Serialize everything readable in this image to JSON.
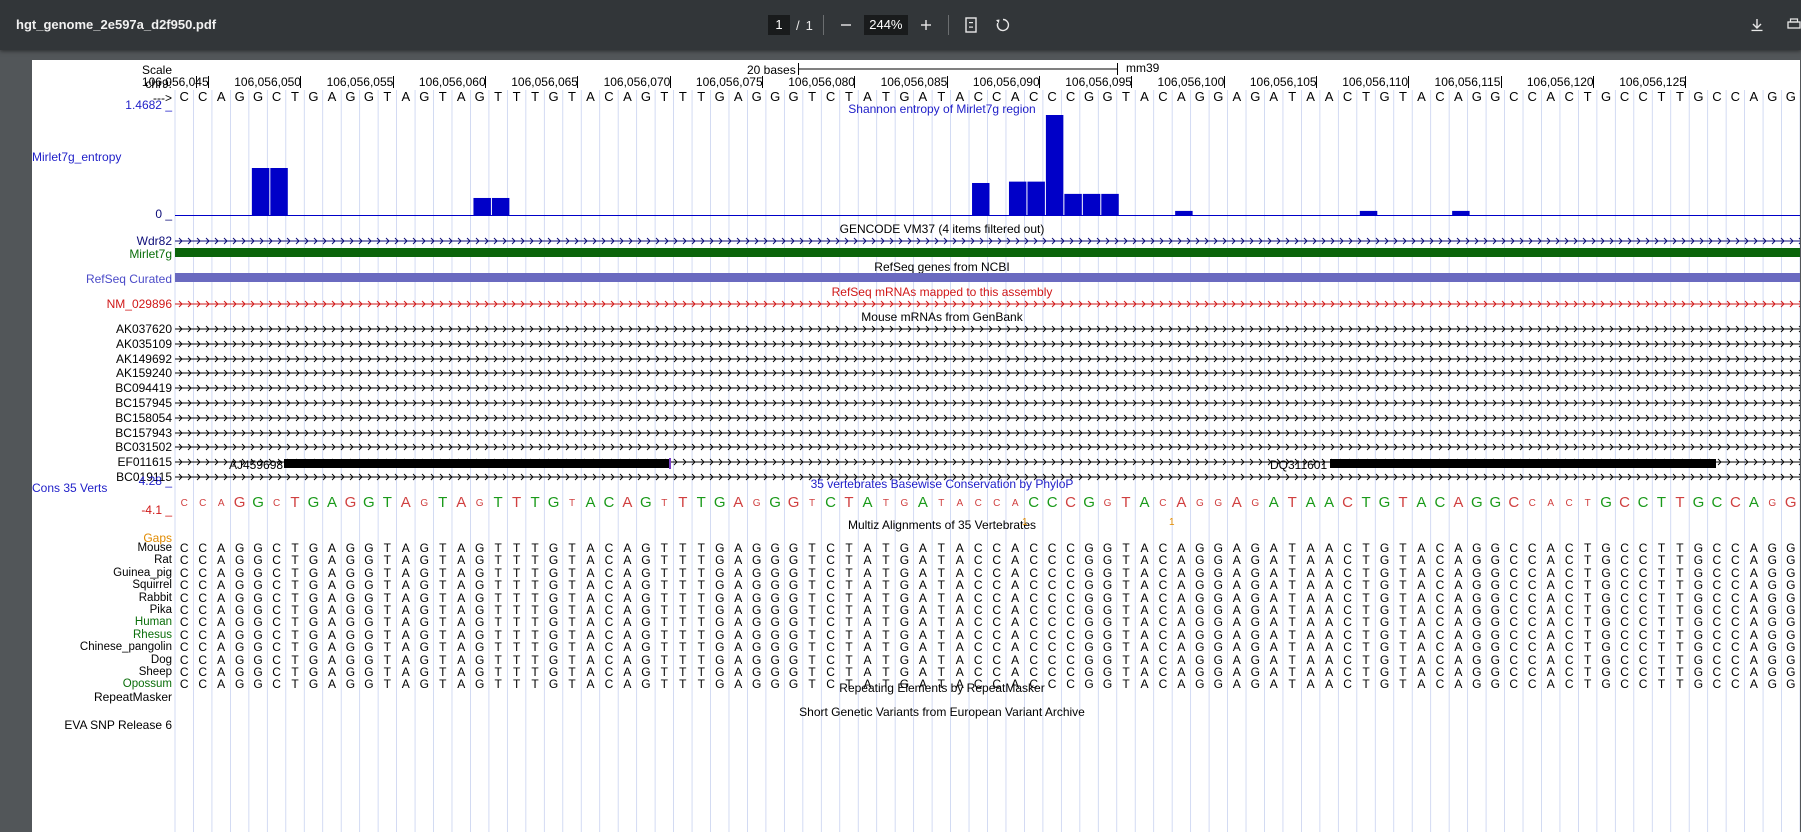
{
  "toolbar": {
    "title": "hgt_genome_2e597a_d2f950.pdf",
    "page_current": "1",
    "page_sep": "/",
    "page_total": "1",
    "zoom": "244%",
    "icons": [
      "minus-icon",
      "plus-icon",
      "fit-page-icon",
      "rotate-icon",
      "download-icon",
      "print-icon"
    ]
  },
  "browser": {
    "scale_label": "Scale",
    "scale_text": "20 bases",
    "assembly": "mm39",
    "chrom_label": "chr9:",
    "strand_label": "--->",
    "positions": [
      "106,056,045",
      "106,056,050",
      "106,056,055",
      "106,056,060",
      "106,056,065",
      "106,056,070",
      "106,056,075",
      "106,056,080",
      "106,056,085",
      "106,056,090",
      "106,056,095",
      "106,056,100",
      "106,056,105",
      "106,056,110",
      "106,056,115",
      "106,056,120",
      "106,056,125"
    ],
    "sequence": "CCAGGCTGAGGTAGTAGTTTGTACAGTTTGAGGGTCTATGATACCACCCGGTACAGGAGATAACTGTACAGGCCACTGCCTTGCCAGG",
    "entropy": {
      "track_label": "Mirlet7g_entropy",
      "ymax": "1.4682 _",
      "ymin": "0 _",
      "title": "Shannon entropy of Mirlet7g region",
      "color": "#0000c8"
    },
    "gencode": {
      "title": "GENCODE VM37 (4 items filtered out)",
      "items": [
        "Wdr82",
        "Mirlet7g"
      ]
    },
    "refseq": {
      "title": "RefSeq genes from NCBI",
      "label": "RefSeq Curated"
    },
    "refseq_mrna": {
      "title": "RefSeq mRNAs mapped to this assembly",
      "label": "NM_029896"
    },
    "mouse_mrna": {
      "title": "Mouse mRNAs from GenBank",
      "items": [
        "AK037620",
        "AK035109",
        "AK149692",
        "AK159240",
        "BC094419",
        "BC157945",
        "BC158054",
        "BC157943",
        "BC031502",
        "EF011615",
        "BC019115"
      ],
      "extra_left": "AJ459698",
      "extra_right": "DQ311601"
    },
    "conservation": {
      "track_label": "Cons 35 Verts",
      "ymax": "4.28 _",
      "ymin": "-4.1 _",
      "title": "35 vertebrates Basewise Conservation by PhyloP"
    },
    "multiz": {
      "title": "Multiz Alignments of 35 Vertebrates",
      "gaps_label": "Gaps",
      "gap_mark": "1",
      "species": [
        "Mouse",
        "Rat",
        "Guinea_pig",
        "Squirrel",
        "Rabbit",
        "Pika",
        "Human",
        "Rhesus",
        "Chinese_pangolin",
        "Dog",
        "Sheep",
        "Opossum"
      ]
    },
    "repeatmasker": {
      "label": "RepeatMasker",
      "title": "Repeating Elements by RepeatMasker"
    },
    "eva": {
      "label": "EVA SNP Release 6",
      "title": "Short Genetic Variants from European Variant Archive"
    }
  }
}
